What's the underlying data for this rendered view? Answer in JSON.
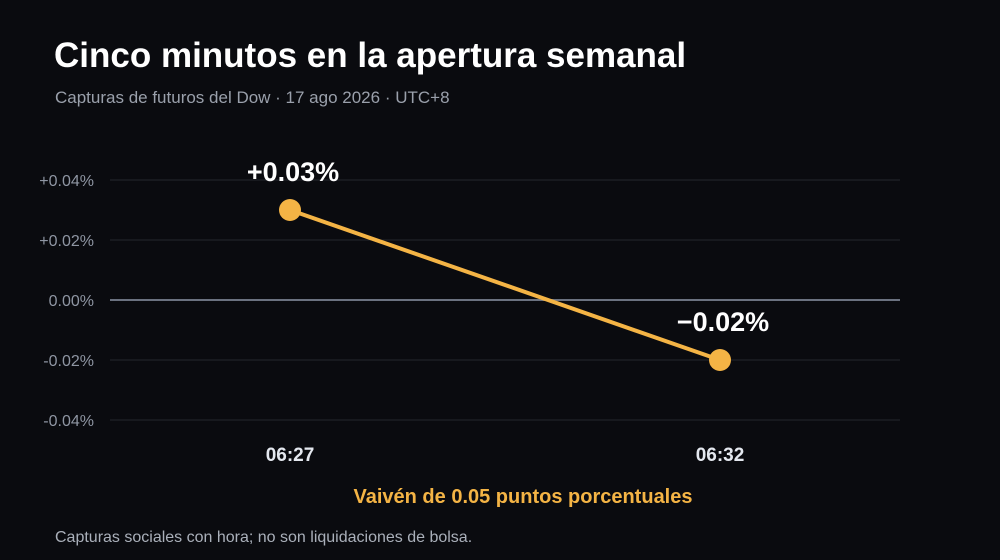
{
  "title": "Cinco minutos en la apertura semanal",
  "subtitle": "Capturas de futuros del Dow · 17 ago 2026 · UTC+8",
  "annotation": "Vaivén de 0.05 puntos porcentuales",
  "footnote": "Capturas sociales con hora; no son liquidaciones de bolsa.",
  "colors": {
    "background": "#0a0b0f",
    "series": "#f4b445",
    "grid": "#24272e",
    "zero_line": "#6b7280"
  },
  "chart_data": {
    "type": "line",
    "x": [
      "06:27",
      "06:32"
    ],
    "series": [
      {
        "values": [
          0.03,
          -0.02
        ]
      }
    ],
    "data_labels": [
      "+0.03%",
      "−0.02%"
    ],
    "ylim": [
      -0.04,
      0.04
    ],
    "yticks": [
      0.04,
      0.02,
      0.0,
      -0.02,
      -0.04
    ],
    "ytick_labels": [
      "+0.04%",
      "+0.02%",
      "0.00%",
      "-0.02%",
      "-0.04%"
    ],
    "grid": true,
    "legend": "none"
  }
}
